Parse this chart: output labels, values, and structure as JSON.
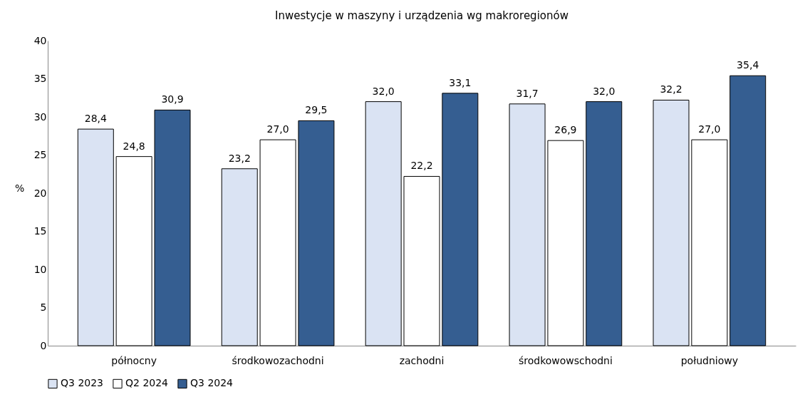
{
  "chart_data": {
    "type": "bar",
    "title": "Inwestycje w maszyny i urządzenia wg makroregionów",
    "ylabel": "%",
    "categories": [
      "północny",
      "środkowozachodni",
      "zachodni",
      "środkowowschodni",
      "południowy"
    ],
    "series": [
      {
        "name": "Q3 2023",
        "color": "#dae3f3",
        "values": [
          28.4,
          23.2,
          32.0,
          31.7,
          32.2
        ],
        "value_labels": [
          "28,4",
          "23,2",
          "32,0",
          "31,7",
          "32,2"
        ]
      },
      {
        "name": "Q2 2024",
        "color": "#ffffff",
        "values": [
          24.8,
          27.0,
          22.2,
          26.9,
          27.0
        ],
        "value_labels": [
          "24,8",
          "27,0",
          "22,2",
          "26,9",
          "27,0"
        ]
      },
      {
        "name": "Q3 2024",
        "color": "#355e91",
        "values": [
          30.9,
          29.5,
          33.1,
          32.0,
          35.4
        ],
        "value_labels": [
          "30,9",
          "29,5",
          "33,1",
          "32,0",
          "35,4"
        ]
      }
    ],
    "ylim": [
      0,
      40
    ],
    "yticks": [
      0,
      5,
      10,
      15,
      20,
      25,
      30,
      35,
      40
    ],
    "grid": false,
    "legend": "bottom"
  }
}
